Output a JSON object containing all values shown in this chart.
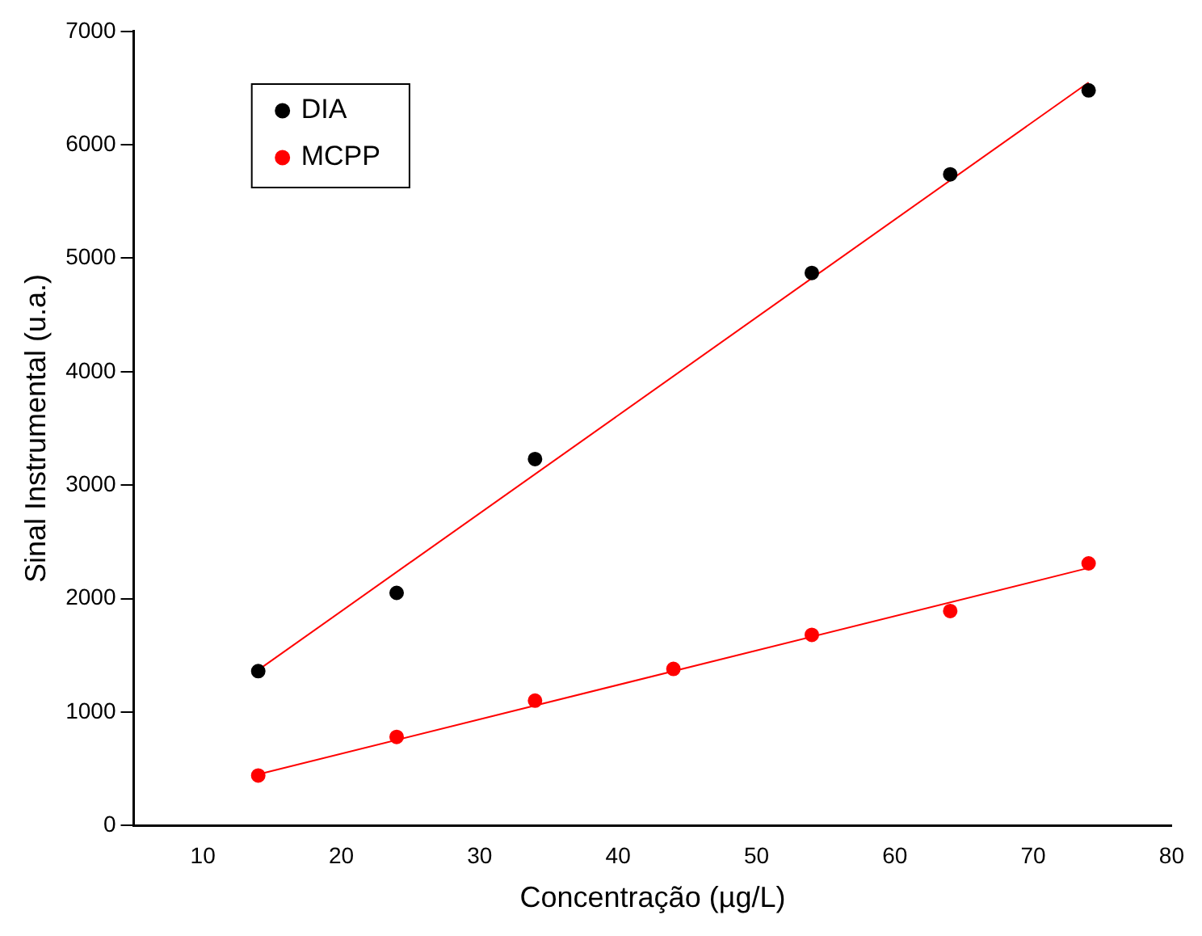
{
  "chart_data": {
    "type": "scatter",
    "xlabel": "Concentração (µg/L)",
    "ylabel": "Sinal Instrumental (u.a.)",
    "xlim": [
      5,
      80
    ],
    "xticks": [
      10,
      20,
      30,
      40,
      50,
      60,
      70,
      80
    ],
    "ylim": [
      0,
      7000
    ],
    "yticks": [
      0,
      1000,
      2000,
      3000,
      4000,
      5000,
      6000,
      7000
    ],
    "grid": false,
    "legend": "top left",
    "marker": "circle",
    "series": [
      {
        "name": "DIA",
        "color": "#000000",
        "x": [
          14,
          24,
          34,
          54,
          64,
          74
        ],
        "values": [
          1360,
          2050,
          3230,
          4870,
          5740,
          6480
        ]
      },
      {
        "name": "MCPP",
        "color": "#ff0000",
        "x": [
          14,
          24,
          34,
          44,
          54,
          64,
          74
        ],
        "values": [
          440,
          780,
          1100,
          1380,
          1680,
          1890,
          2310
        ]
      },
      {
        "type": "line",
        "color": "#ff0000",
        "x": [
          14,
          74
        ],
        "values": [
          1370,
          6550
        ],
        "marker": "none",
        "line_style": "solid"
      },
      {
        "type": "line",
        "color": "#ff0000",
        "x": [
          14,
          74
        ],
        "values": [
          450,
          2270
        ],
        "marker": "none",
        "line_style": "solid"
      }
    ]
  }
}
